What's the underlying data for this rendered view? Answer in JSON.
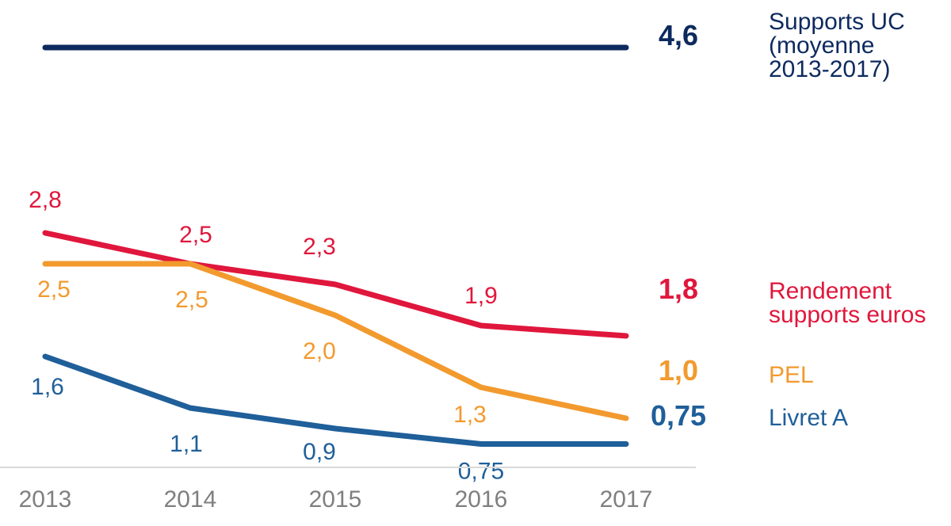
{
  "chart_data": {
    "type": "line",
    "x": [
      "2013",
      "2014",
      "2015",
      "2016",
      "2017"
    ],
    "ylim": [
      0,
      5
    ],
    "grid": false,
    "series": [
      {
        "key": "uc",
        "name": "Supports UC (moyenne 2013-2017)",
        "legend_lines": [
          "Supports UC",
          "(moyenne",
          "2013-2017)"
        ],
        "color": "#0d2a5e",
        "values": [
          4.6,
          4.6,
          4.6,
          4.6,
          4.6
        ],
        "point_labels": [],
        "end_label": "4,6"
      },
      {
        "key": "euros",
        "name": "Rendement supports euros",
        "legend_lines": [
          "Rendement",
          "supports euros"
        ],
        "color": "#e0173c",
        "values": [
          2.8,
          2.5,
          2.3,
          1.9,
          1.8
        ],
        "point_labels": [
          "2,8",
          "2,5",
          "2,3",
          "1,9"
        ],
        "end_label": "1,8"
      },
      {
        "key": "pel",
        "name": "PEL",
        "legend_lines": [
          "PEL"
        ],
        "color": "#f29a2e",
        "values": [
          2.5,
          2.5,
          2.0,
          1.3,
          1.0
        ],
        "point_labels": [
          "2,5",
          "2,5",
          "2,0",
          "1,3"
        ],
        "end_label": "1,0"
      },
      {
        "key": "livret",
        "name": "Livret A",
        "legend_lines": [
          "Livret A"
        ],
        "color": "#1f5f9a",
        "values": [
          1.6,
          1.1,
          0.9,
          0.75,
          0.75
        ],
        "point_labels": [
          "1,6",
          "1,1",
          "0,9",
          "0,75"
        ],
        "end_label": "0,75"
      }
    ]
  }
}
